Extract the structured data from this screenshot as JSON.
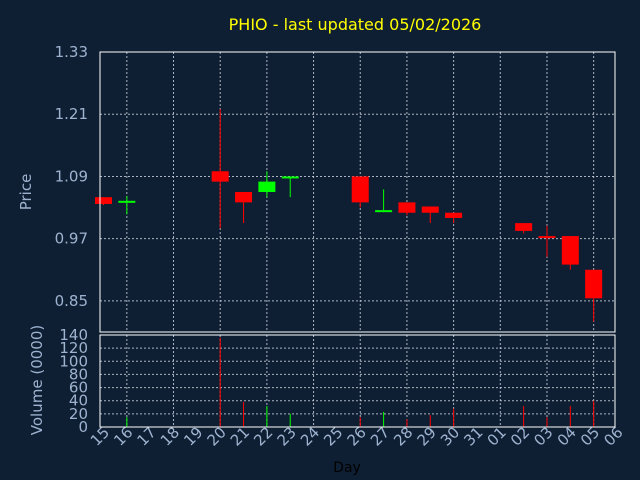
{
  "chart_data": {
    "type": "candlestick",
    "title": "PHIO - last updated 05/02/2026",
    "xlabel": "Day",
    "ylabel": "Price",
    "volume_label": "Volume (0000)",
    "grid": true,
    "colors": {
      "up": "#00ff00",
      "down": "#ff0000",
      "background": "#0f1f33",
      "title": "#ffff00",
      "axis_text": "#9db3cf"
    },
    "x_tick_labels": [
      "15",
      "16",
      "17",
      "18",
      "19",
      "20",
      "21",
      "22",
      "23",
      "24",
      "25",
      "26",
      "27",
      "28",
      "29",
      "30",
      "31",
      "01",
      "02",
      "03",
      "04",
      "05",
      "06"
    ],
    "price_ylim": [
      0.79,
      1.33
    ],
    "price_ticks": [
      "0.85",
      "0.97",
      "1.09",
      "1.21",
      "1.33"
    ],
    "volume_ylim": [
      0,
      140
    ],
    "volume_ticks": [
      "0",
      "20",
      "40",
      "60",
      "80",
      "100",
      "120",
      "140"
    ],
    "candles": [
      {
        "day": "15",
        "open": 1.05,
        "high": 1.05,
        "low": 1.035,
        "close": 1.037,
        "volume": 0,
        "dir": "down"
      },
      {
        "day": "16",
        "open": 1.043,
        "high": 1.052,
        "low": 1.017,
        "close": 1.043,
        "volume": 15,
        "dir": "up"
      },
      {
        "day": "20",
        "open": 1.1,
        "high": 1.22,
        "low": 0.99,
        "close": 1.08,
        "volume": 136,
        "dir": "down"
      },
      {
        "day": "21",
        "open": 1.06,
        "high": 1.06,
        "low": 1.0,
        "close": 1.04,
        "volume": 38,
        "dir": "down"
      },
      {
        "day": "22",
        "open": 1.06,
        "high": 1.1,
        "low": 1.05,
        "close": 1.08,
        "volume": 32,
        "dir": "up"
      },
      {
        "day": "23",
        "open": 1.09,
        "high": 1.09,
        "low": 1.05,
        "close": 1.09,
        "volume": 20,
        "dir": "up"
      },
      {
        "day": "26",
        "open": 1.09,
        "high": 1.09,
        "low": 1.03,
        "close": 1.04,
        "volume": 15,
        "dir": "down"
      },
      {
        "day": "27",
        "open": 1.025,
        "high": 1.065,
        "low": 1.025,
        "close": 1.025,
        "volume": 23,
        "dir": "up"
      },
      {
        "day": "28",
        "open": 1.04,
        "high": 1.04,
        "low": 1.015,
        "close": 1.02,
        "volume": 12,
        "dir": "down"
      },
      {
        "day": "29",
        "open": 1.032,
        "high": 1.032,
        "low": 1.0,
        "close": 1.02,
        "volume": 18,
        "dir": "down"
      },
      {
        "day": "30",
        "open": 1.02,
        "high": 1.02,
        "low": 1.0,
        "close": 1.01,
        "volume": 28,
        "dir": "down"
      },
      {
        "day": "02",
        "open": 1.0,
        "high": 1.0,
        "low": 0.98,
        "close": 0.985,
        "volume": 32,
        "dir": "down"
      },
      {
        "day": "03",
        "open": 0.975,
        "high": 0.995,
        "low": 0.935,
        "close": 0.975,
        "volume": 15,
        "dir": "down"
      },
      {
        "day": "04",
        "open": 0.975,
        "high": 0.975,
        "low": 0.91,
        "close": 0.92,
        "volume": 32,
        "dir": "down"
      },
      {
        "day": "05",
        "open": 0.91,
        "high": 0.91,
        "low": 0.81,
        "close": 0.855,
        "volume": 40,
        "dir": "down"
      }
    ]
  }
}
